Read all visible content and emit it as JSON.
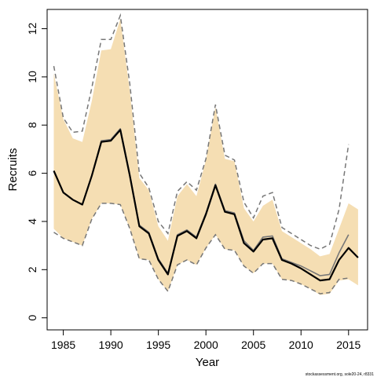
{
  "chart_data": {
    "type": "line",
    "xlabel": "Year",
    "ylabel": "Recruits",
    "credit": "stockassessment.org, sole20-24, r8331",
    "xlim": [
      1983.3,
      2017.0
    ],
    "ylim": [
      -0.5,
      12.8
    ],
    "xticks": [
      1985,
      1990,
      1995,
      2000,
      2005,
      2010,
      2015
    ],
    "yticks": [
      0,
      2,
      4,
      6,
      8,
      10,
      12
    ],
    "grid": false,
    "legend": "none",
    "x": [
      1984,
      1985,
      1986,
      1987,
      1988,
      1989,
      1990,
      1991,
      1992,
      1993,
      1994,
      1995,
      1996,
      1997,
      1998,
      1999,
      2000,
      2001,
      2002,
      2003,
      2004,
      2005,
      2006,
      2007,
      2008,
      2009,
      2010,
      2011,
      2012,
      2013,
      2014,
      2015,
      2016
    ],
    "series": [
      {
        "role": "estimate",
        "color": "#000000",
        "values": [
          6.1,
          5.2,
          4.9,
          4.7,
          5.9,
          7.3,
          7.35,
          7.8,
          5.9,
          3.8,
          3.5,
          2.4,
          1.8,
          3.4,
          3.6,
          3.3,
          4.3,
          5.5,
          4.4,
          4.3,
          3.1,
          2.75,
          3.25,
          3.3,
          2.4,
          2.25,
          2.05,
          1.8,
          1.55,
          1.6,
          2.4,
          2.9,
          2.5
        ]
      },
      {
        "role": "previous-estimate",
        "color": "#777777",
        "values": [
          6.1,
          5.2,
          4.9,
          4.7,
          5.9,
          7.35,
          7.4,
          7.85,
          5.95,
          3.85,
          3.55,
          2.45,
          1.85,
          3.45,
          3.65,
          3.35,
          4.35,
          5.55,
          4.45,
          4.35,
          3.2,
          2.8,
          3.35,
          3.4,
          2.45,
          2.3,
          2.15,
          1.95,
          1.75,
          1.8,
          2.7,
          3.45,
          null
        ]
      }
    ],
    "band": {
      "color": "#f5deb3",
      "lower": [
        3.7,
        3.3,
        3.15,
        3.0,
        4.1,
        4.75,
        4.75,
        4.7,
        3.7,
        2.45,
        2.4,
        1.6,
        1.1,
        2.2,
        2.4,
        2.2,
        2.9,
        3.45,
        2.85,
        2.8,
        2.15,
        1.85,
        2.25,
        2.25,
        1.6,
        1.55,
        1.4,
        1.2,
        0.95,
        1.0,
        1.55,
        1.6,
        1.35
      ],
      "upper": [
        10.15,
        8.25,
        7.45,
        7.3,
        9.0,
        11.1,
        11.15,
        12.4,
        9.4,
        5.8,
        5.3,
        3.8,
        3.2,
        5.05,
        5.55,
        5.05,
        6.55,
        8.75,
        6.6,
        6.5,
        4.55,
        4.0,
        4.65,
        4.9,
        3.6,
        3.35,
        3.1,
        2.85,
        2.55,
        2.65,
        3.7,
        4.75,
        4.5
      ]
    },
    "previous_band": {
      "color": "#777777",
      "style": "dashed",
      "lower": [
        3.55,
        3.3,
        3.15,
        3.0,
        4.1,
        4.75,
        4.75,
        4.7,
        3.7,
        2.45,
        2.4,
        1.6,
        1.1,
        2.2,
        2.4,
        2.2,
        2.9,
        3.45,
        2.85,
        2.8,
        2.15,
        1.85,
        2.25,
        2.25,
        1.6,
        1.55,
        1.4,
        1.2,
        1.0,
        1.05,
        1.6,
        1.65,
        null
      ],
      "upper": [
        10.45,
        8.3,
        7.7,
        7.75,
        9.55,
        11.55,
        11.55,
        12.55,
        9.7,
        6.0,
        5.4,
        4.0,
        3.5,
        5.25,
        5.65,
        5.3,
        6.6,
        8.85,
        6.75,
        6.55,
        4.8,
        4.15,
        5.05,
        5.2,
        3.75,
        3.5,
        3.25,
        3.0,
        2.85,
        3.05,
        4.5,
        7.2,
        null
      ]
    }
  }
}
